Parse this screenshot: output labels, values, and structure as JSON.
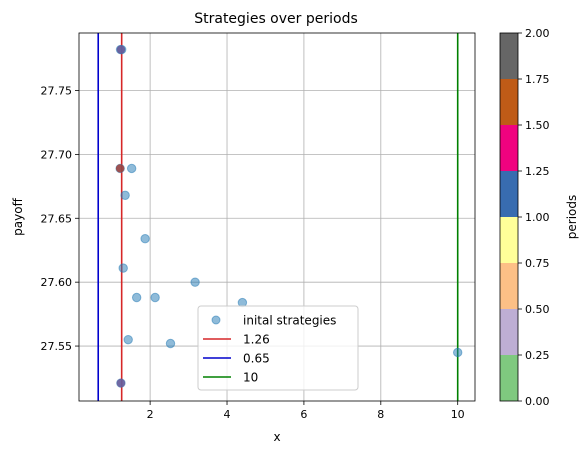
{
  "chart_data": [
    {
      "type": "scatter",
      "title": "Strategies over periods",
      "xlabel": "x",
      "ylabel": "payoff",
      "xlim": [
        0.15,
        10.45
      ],
      "ylim": [
        27.507,
        27.795
      ],
      "xticks": [
        2,
        4,
        6,
        8,
        10
      ],
      "yticks": [
        27.55,
        27.6,
        27.65,
        27.7,
        27.75
      ],
      "grid": true,
      "legend_position": "lower center",
      "series": [
        {
          "name": "inital strategies",
          "kind": "scatter",
          "color": "#1f77b4",
          "alpha": 0.5,
          "points": [
            {
              "x": 1.23,
              "y": 27.782
            },
            {
              "x": 1.26,
              "y": 27.782
            },
            {
              "x": 1.22,
              "y": 27.689
            },
            {
              "x": 1.52,
              "y": 27.689
            },
            {
              "x": 1.35,
              "y": 27.668
            },
            {
              "x": 1.87,
              "y": 27.634
            },
            {
              "x": 1.3,
              "y": 27.611
            },
            {
              "x": 3.17,
              "y": 27.6
            },
            {
              "x": 1.65,
              "y": 27.588
            },
            {
              "x": 2.13,
              "y": 27.588
            },
            {
              "x": 4.4,
              "y": 27.584
            },
            {
              "x": 1.43,
              "y": 27.555
            },
            {
              "x": 2.53,
              "y": 27.552
            },
            {
              "x": 10.0,
              "y": 27.545
            },
            {
              "x": 1.24,
              "y": 27.521
            }
          ]
        },
        {
          "name": "1.26",
          "kind": "vline",
          "x": 1.26,
          "color": "#d62728"
        },
        {
          "name": "0.65",
          "kind": "vline",
          "x": 0.65,
          "color": "#0000cc"
        },
        {
          "name": "10",
          "kind": "vline",
          "x": 10,
          "color": "#008000"
        }
      ],
      "overlay_points": [
        {
          "x": 1.24,
          "y": 27.782,
          "color": "#6b5a9a"
        },
        {
          "x": 1.22,
          "y": 27.689,
          "color": "#a0403a"
        },
        {
          "x": 1.24,
          "y": 27.521,
          "color": "#6b5a9a"
        }
      ],
      "colorbar": {
        "label": "periods",
        "range": [
          0,
          2
        ],
        "ticks": [
          "0.00",
          "0.25",
          "0.50",
          "0.75",
          "1.00",
          "1.25",
          "1.50",
          "1.75",
          "2.00"
        ],
        "colors": [
          "#7fc97f",
          "#beaed4",
          "#fdc086",
          "#ffff99",
          "#386cb0",
          "#f0027f",
          "#bf5b17",
          "#666666"
        ]
      }
    }
  ]
}
